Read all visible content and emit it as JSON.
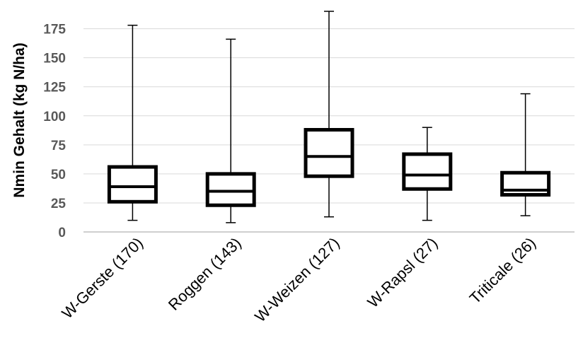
{
  "chart_data": {
    "type": "box",
    "title": "",
    "xlabel": "",
    "ylabel": "Nmin Gehalt (kg N/ha)",
    "ylim": [
      0,
      190
    ],
    "yticks": [
      0,
      25,
      50,
      75,
      100,
      125,
      150,
      175
    ],
    "grid": true,
    "legend": "none",
    "categories": [
      "W-Gerste (170)",
      "Roggen (143)",
      "W-Weizen (127)",
      "W-Rapsl (27)",
      "Triticale (26)"
    ],
    "boxes": [
      {
        "min": 10,
        "q1": 26,
        "median": 39,
        "q3": 56,
        "max": 178
      },
      {
        "min": 8,
        "q1": 23,
        "median": 35,
        "q3": 50,
        "max": 166
      },
      {
        "min": 13,
        "q1": 48,
        "median": 65,
        "q3": 88,
        "max": 190
      },
      {
        "min": 10,
        "q1": 37,
        "median": 49,
        "q3": 67,
        "max": 90
      },
      {
        "min": 14,
        "q1": 32,
        "median": 36,
        "q3": 51,
        "max": 119
      }
    ],
    "colors": {
      "box": "#000000",
      "grid": "#d9d9d9",
      "tick_text": "#595959"
    }
  }
}
